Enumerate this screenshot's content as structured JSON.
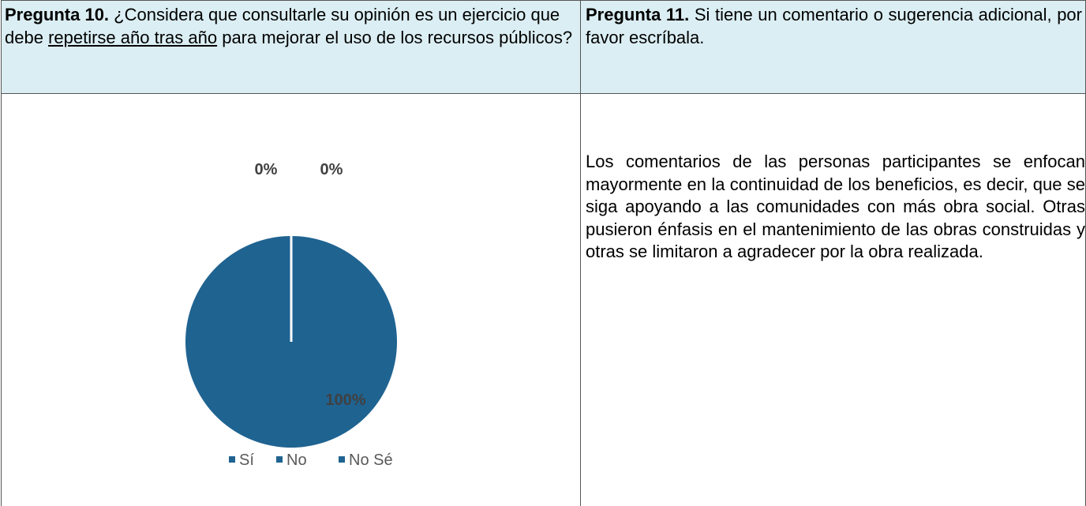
{
  "table": {
    "header": [
      {
        "bold": "Pregunta 10.",
        "before": " ¿Considera que consultarle su opinión es un ejercicio que debe ",
        "underline": "repetirse año tras año",
        "after": " para mejorar el uso de los recursos públicos?"
      },
      {
        "bold": "Pregunta 11.",
        "text": " Si tiene un comentario o sugerencia adicional, por favor escríbala."
      }
    ],
    "body": {
      "comment": "Los comentarios de las personas participantes se enfocan mayormente en la continuidad de los beneficios, es decir, que se siga apoyando a las comunidades con más obra social. Otras pusieron énfasis en el mantenimiento de las obras construidas y otras se limitaron a agradecer por la obra realizada."
    }
  },
  "chart_data": {
    "type": "pie",
    "categories": [
      "Sí",
      "No",
      "No Sé"
    ],
    "values": [
      100,
      0,
      0
    ],
    "value_labels": [
      "100%",
      "0%",
      "0%"
    ],
    "colors": [
      "#1f6391",
      "#1f6391",
      "#1f6391"
    ],
    "legend": "bottom"
  }
}
